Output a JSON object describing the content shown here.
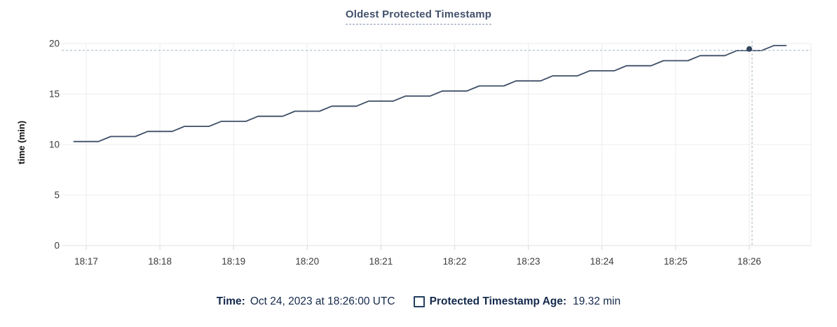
{
  "chart": {
    "title": "Oldest Protected Timestamp",
    "ylabel": "time (min)"
  },
  "legend": {
    "time_label": "Time:",
    "time_value": "Oct 24, 2023 at 18:26:00 UTC",
    "series_label": "Protected Timestamp Age:",
    "series_value": "19.32 min",
    "series_checkbox_state": "unchecked"
  },
  "colors": {
    "line": "#3d4e66",
    "point": "#32445d",
    "title_text": "#42516c",
    "legend_text": "#14294b",
    "crosshair": "#9fb4c3",
    "grid": "#ececec",
    "axis_line": "#e0e0e0",
    "tick_mark": "#d6d6d6",
    "axis_text": "#3b3b3b"
  },
  "chart_data": {
    "type": "line",
    "title": "Oldest Protected Timestamp",
    "xlabel": "",
    "ylabel": "time (min)",
    "ylim": [
      0,
      20
    ],
    "y_ticks": [
      0,
      5,
      10,
      15,
      20
    ],
    "x_ticks": [
      "18:17",
      "18:18",
      "18:19",
      "18:20",
      "18:21",
      "18:22",
      "18:23",
      "18:24",
      "18:25",
      "18:26"
    ],
    "x_encoding": "seconds relative to 18:17:00",
    "grid": true,
    "legend_position": "bottom",
    "series": [
      {
        "name": "Protected Timestamp Age",
        "unit": "min",
        "points": [
          [
            -10,
            10.3
          ],
          [
            0,
            10.3
          ],
          [
            10,
            10.3
          ],
          [
            20,
            10.8
          ],
          [
            30,
            10.8
          ],
          [
            40,
            10.8
          ],
          [
            50,
            11.3
          ],
          [
            60,
            11.3
          ],
          [
            70,
            11.3
          ],
          [
            80,
            11.8
          ],
          [
            90,
            11.8
          ],
          [
            100,
            11.8
          ],
          [
            110,
            12.3
          ],
          [
            120,
            12.3
          ],
          [
            130,
            12.3
          ],
          [
            140,
            12.8
          ],
          [
            150,
            12.8
          ],
          [
            160,
            12.8
          ],
          [
            170,
            13.3
          ],
          [
            180,
            13.3
          ],
          [
            190,
            13.3
          ],
          [
            200,
            13.8
          ],
          [
            210,
            13.8
          ],
          [
            220,
            13.8
          ],
          [
            230,
            14.3
          ],
          [
            240,
            14.3
          ],
          [
            250,
            14.3
          ],
          [
            260,
            14.8
          ],
          [
            270,
            14.8
          ],
          [
            280,
            14.8
          ],
          [
            290,
            15.3
          ],
          [
            300,
            15.3
          ],
          [
            310,
            15.3
          ],
          [
            320,
            15.8
          ],
          [
            330,
            15.8
          ],
          [
            340,
            15.8
          ],
          [
            350,
            16.3
          ],
          [
            360,
            16.3
          ],
          [
            370,
            16.3
          ],
          [
            380,
            16.8
          ],
          [
            390,
            16.8
          ],
          [
            400,
            16.8
          ],
          [
            410,
            17.3
          ],
          [
            420,
            17.3
          ],
          [
            430,
            17.3
          ],
          [
            440,
            17.8
          ],
          [
            450,
            17.8
          ],
          [
            460,
            17.8
          ],
          [
            470,
            18.3
          ],
          [
            480,
            18.3
          ],
          [
            490,
            18.3
          ],
          [
            500,
            18.8
          ],
          [
            510,
            18.8
          ],
          [
            520,
            18.8
          ],
          [
            530,
            19.3
          ],
          [
            540,
            19.3
          ],
          [
            550,
            19.3
          ],
          [
            560,
            19.8
          ],
          [
            570,
            19.8
          ]
        ]
      }
    ],
    "highlight": {
      "time": "18:26:00",
      "seconds": 540,
      "value": 19.32
    }
  }
}
